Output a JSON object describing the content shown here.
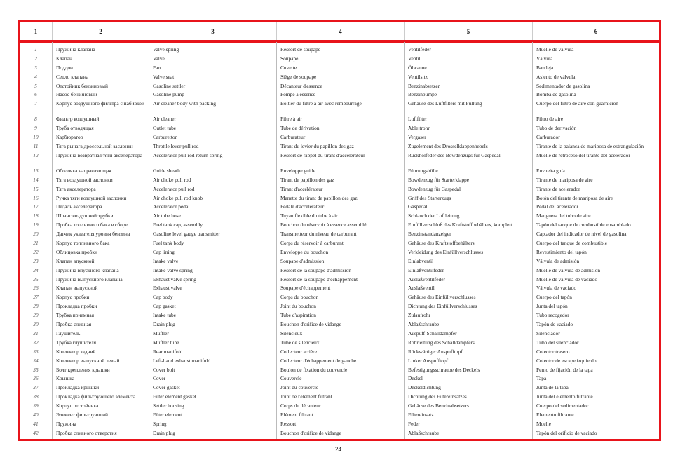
{
  "header": [
    "1",
    "2",
    "3",
    "4",
    "5",
    "6"
  ],
  "rows": [
    [
      "1",
      "Пружина клапана",
      "Valve spring",
      "Ressort de soupape",
      "Ventilfeder",
      "Muelle de válvula"
    ],
    [
      "2",
      "Клапан",
      "Valve",
      "Soupape",
      "Ventil",
      "Válvula"
    ],
    [
      "3",
      "Поддон",
      "Pan",
      "Cuvette",
      "Ölwanne",
      "Bandeja"
    ],
    [
      "4",
      "Седло клапана",
      "Valve seat",
      "Siège de soupape",
      "Ventilsitz",
      "Asiento de válvula"
    ],
    [
      "5",
      "Отстойник бензиновый",
      "Gasoline settler",
      "Décanteur d'essence",
      "Benzinabsetzer",
      "Sedimentador de gasolina"
    ],
    [
      "6",
      "Насос бензиновый",
      "Gasoline pump",
      "Pompe à essence",
      "Benzinpumpe",
      "Bomba de gasolina"
    ],
    [
      "7",
      "Корпус воздушного фильтра с набивкой",
      "Air cleaner body with packing",
      "Boîtier du filtre à air avec rembourrage",
      "Gehäuse des Luftfilters mit Füllung",
      "Cuerpo del filtro de aire con guarnición"
    ],
    [
      "8",
      "Фильтр воздушный",
      "Air cleaner",
      "Filtre à air",
      "Luftfilter",
      "Filtro de aire"
    ],
    [
      "9",
      "Труба отводящая",
      "Outlet tube",
      "Tube de dérivation",
      "Ableitrohr",
      "Tubo de derivación"
    ],
    [
      "10",
      "Карбюратор",
      "Carburettor",
      "Carburateur",
      "Vergaser",
      "Carburador"
    ],
    [
      "11",
      "Тяга рычага дроссельной заслонки",
      "Throttle lever pull rod",
      "Tirant du levier du papillon des gaz",
      "Zugelement des Drosselklappenhebels",
      "Tirante de la palanca de mariposa de estrangulación"
    ],
    [
      "12",
      "Пружина возвратная тяги акселератора",
      "Accelerator pull rod return spring",
      "Ressort de rappel du tirant d'accélérateur",
      "Rückholfeder des Bowdenzugs für Gaspedal",
      "Muelle de retroceso del tirante del acelerador"
    ],
    [
      "13",
      "Оболочка направляющая",
      "Guide sheath",
      "Enveloppe guide",
      "Führungshülle",
      "Envuelta guía"
    ],
    [
      "14",
      "Тяга воздушной заслонки",
      "Air choke pull rod",
      "Tirant de papillon des gaz",
      "Bowdenzug für Starterklappe",
      "Tirante de mariposa de aire"
    ],
    [
      "15",
      "Тяга акселератора",
      "Accelerator pull rod",
      "Tirant d'accélérateur",
      "Bowdenzug für Gaspedal",
      "Tirante de acelerador"
    ],
    [
      "16",
      "Ручка тяги воздушной заслонки",
      "Air choke pull rod knob",
      "Manette du tirant de papillon des gaz",
      "Griff des Starterzugs",
      "Botón del tirante de mariposa de aire"
    ],
    [
      "17",
      "Педаль акселератора",
      "Accelerator pedal",
      "Pédale d'accélérateur",
      "Gaspedal",
      "Pedal del acelerador"
    ],
    [
      "18",
      "Шланг воздушной трубки",
      "Air tube hose",
      "Tuyau flexible du tube à air",
      "Schlauch der Luftleitung",
      "Manguera del tubo de aire"
    ],
    [
      "19",
      "Пробка топливного бака в сборе",
      "Fuel tank cap, assembly",
      "Bouchon du réservoir à essence assemblé",
      "Einfüllverschluß des Kraftstoffbehälters, komplett",
      "Tapón del tanque de combustible ensamblado"
    ],
    [
      "20",
      "Датчик указателя уровня бензина",
      "Gasoline level gauge transmitter",
      "Transmetteur du niveau de carburant",
      "Benzinstandanzeiger",
      "Captador del indicador de nivel de gasolina"
    ],
    [
      "21",
      "Корпус топливного бака",
      "Fuel tank body",
      "Corps du réservoir à carburant",
      "Gehäuse des Kraftstoffbehälters",
      "Cuerpo del tanque de combustible"
    ],
    [
      "22",
      "Облицовка пробки",
      "Cap lining",
      "Enveloppe du bouchon",
      "Verkleidung des Einfüllverschlusses",
      "Revestimiento del tapón"
    ],
    [
      "23",
      "Клапан впускной",
      "Intake valve",
      "Soupape d'admission",
      "Einlaßventil",
      "Válvula de admisión"
    ],
    [
      "24",
      "Пружина впускного клапана",
      "Intake valve spring",
      "Ressort de la soupape d'admission",
      "Einlaßventilfeder",
      "Muelle de válvula de admisión"
    ],
    [
      "25",
      "Пружина выпускного клапана",
      "Exhaust valve spring",
      "Ressort de la soupape d'échappement",
      "Auslaßventilfeder",
      "Muelle de válvula de vaciado"
    ],
    [
      "26",
      "Клапан выпускной",
      "Exhaust valve",
      "Soupape d'échappement",
      "Auslaßventil",
      "Válvula de vaciado"
    ],
    [
      "27",
      "Корпус пробки",
      "Cap body",
      "Corps du bouchon",
      "Gehäuse des Einfüllverschlusses",
      "Cuerpo del tapón"
    ],
    [
      "28",
      "Прокладка пробки",
      "Cap gasket",
      "Joint du bouchon",
      "Dichtung des Einfüllverschlusses",
      "Junta del tapón"
    ],
    [
      "29",
      "Трубка приемная",
      "Intake tube",
      "Tube d'aspiration",
      "Zulaufrohr",
      "Tubo recogedor"
    ],
    [
      "30",
      "Пробка сливная",
      "Drain plug",
      "Bouchon d'orifice de vidange",
      "Ablaßschraube",
      "Tapón de vaciado"
    ],
    [
      "31",
      "Глушитель",
      "Muffler",
      "Silencieux",
      "Auspuff-Schalldämpfer",
      "Silenciador"
    ],
    [
      "32",
      "Трубка глушителя",
      "Muffler tube",
      "Tube de silencieux",
      "Rohrleitung des Schalldämpfers",
      "Tubo del silenciador"
    ],
    [
      "33",
      "Коллектор задний",
      "Rear manifold",
      "Collecteur arrière",
      "Rückwärtiger Auspufftopf",
      "Colector trasero"
    ],
    [
      "34",
      "Коллектор выпускной левый",
      "Left-hand exhaust manifold",
      "Collecteur d'échappement de gauche",
      "Linker Auspufftopf",
      "Colector de escape izquierdo"
    ],
    [
      "35",
      "Болт крепления крышки",
      "Cover bolt",
      "Boulon de fixation du couvercle",
      "Befestigungsschraube des Deckels",
      "Perno de fijación de la tapa"
    ],
    [
      "36",
      "Крышка",
      "Cover",
      "Couvercle",
      "Deckel",
      "Tapa"
    ],
    [
      "37",
      "Прокладка крышки",
      "Cover gasket",
      "Joint du couvercle",
      "Deckeldichtung",
      "Junta de la tapa"
    ],
    [
      "38",
      "Прокладка фильтрующего элемента",
      "Filter element gasket",
      "Joint de l'élément filtrant",
      "Dichtung des Filtereinsatzes",
      "Junta del elemento filtrante"
    ],
    [
      "39",
      "Корпус отстойника",
      "Settler housing",
      "Corps du décanteur",
      "Gehäuse des Benzinabsetzers",
      "Cuerpo del sedimentador"
    ],
    [
      "40",
      "Элемент фильтрующий",
      "Filter element",
      "Elément filtrant",
      "Filtereinsatz",
      "Elemento filtrante"
    ],
    [
      "41",
      "Пружина",
      "Spring",
      "Ressort",
      "Feder",
      "Muelle"
    ],
    [
      "42",
      "Пробка сливного отверстия",
      "Drain plug",
      "Bouchon d'orifice de vidange",
      "Ablaßschraube",
      "Tapón del orificio de vaciado"
    ]
  ],
  "tall_rows": [
    "7",
    "12"
  ],
  "page_number": "24",
  "colors": {
    "border": "#e8141b"
  }
}
